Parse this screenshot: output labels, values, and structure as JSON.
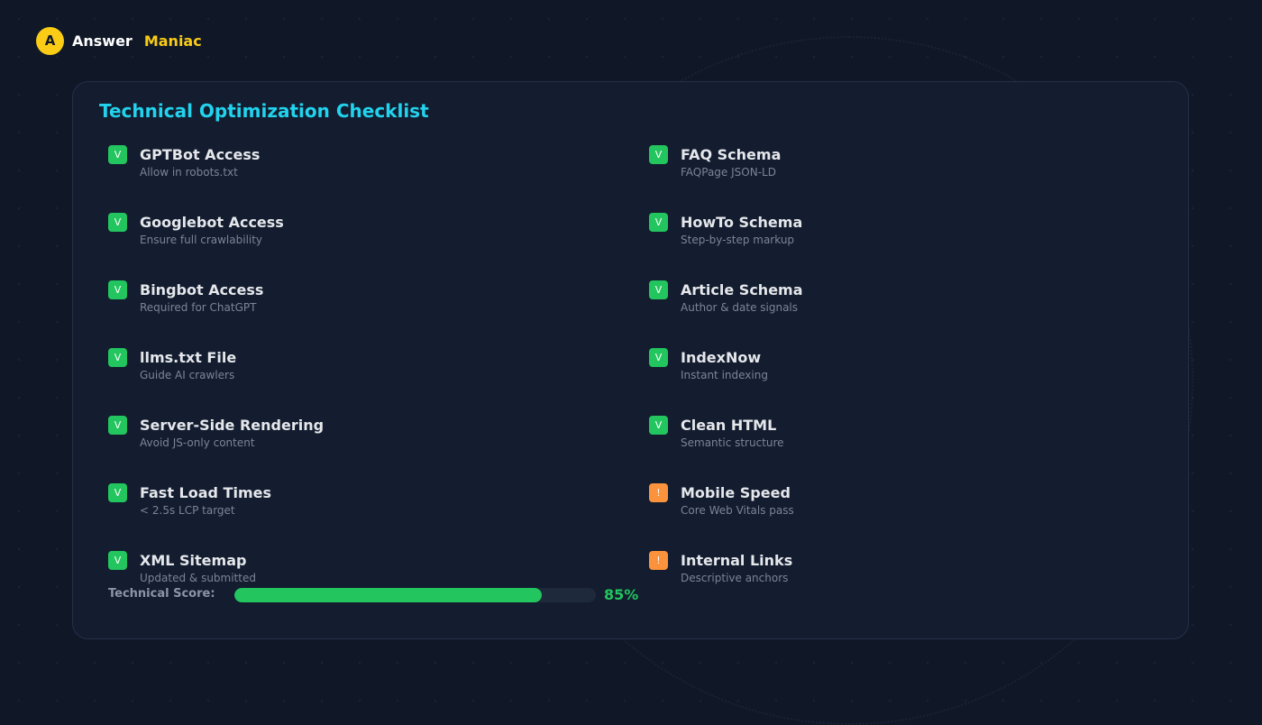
{
  "brand": {
    "logo_letter": "A",
    "name_part1": "Answer",
    "name_part2": "Maniac"
  },
  "checklist": {
    "title": "Technical Optimization Checklist",
    "status_glyphs": {
      "done": "V",
      "warning": "!"
    },
    "columns": [
      [
        {
          "title": "GPTBot Access",
          "desc": "Allow in robots.txt",
          "status": "done"
        },
        {
          "title": "Googlebot Access",
          "desc": "Ensure full crawlability",
          "status": "done"
        },
        {
          "title": "Bingbot Access",
          "desc": "Required for ChatGPT",
          "status": "done"
        },
        {
          "title": "llms.txt File",
          "desc": "Guide AI crawlers",
          "status": "done"
        },
        {
          "title": "Server-Side Rendering",
          "desc": "Avoid JS-only content",
          "status": "done"
        },
        {
          "title": "Fast Load Times",
          "desc": "< 2.5s LCP target",
          "status": "done"
        },
        {
          "title": "XML Sitemap",
          "desc": "Updated & submitted",
          "status": "done"
        }
      ],
      [
        {
          "title": "FAQ Schema",
          "desc": "FAQPage JSON-LD",
          "status": "done"
        },
        {
          "title": "HowTo Schema",
          "desc": "Step-by-step markup",
          "status": "done"
        },
        {
          "title": "Article Schema",
          "desc": "Author & date signals",
          "status": "done"
        },
        {
          "title": "IndexNow",
          "desc": "Instant indexing",
          "status": "done"
        },
        {
          "title": "Clean HTML",
          "desc": "Semantic structure",
          "status": "done"
        },
        {
          "title": "Mobile Speed",
          "desc": "Core Web Vitals pass",
          "status": "warning"
        },
        {
          "title": "Internal Links",
          "desc": "Descriptive anchors",
          "status": "warning"
        }
      ]
    ]
  },
  "score": {
    "label": "Technical Score:",
    "value_text": "85%",
    "percent": 85
  },
  "colors": {
    "background": "#101828",
    "card": "#131d2f",
    "accent_title": "#22d3ee",
    "brand_yellow": "#facc15",
    "status_done": "#22c55e",
    "status_warning": "#fb923c"
  },
  "icons": {
    "done": "check-icon",
    "warning": "warning-icon"
  }
}
